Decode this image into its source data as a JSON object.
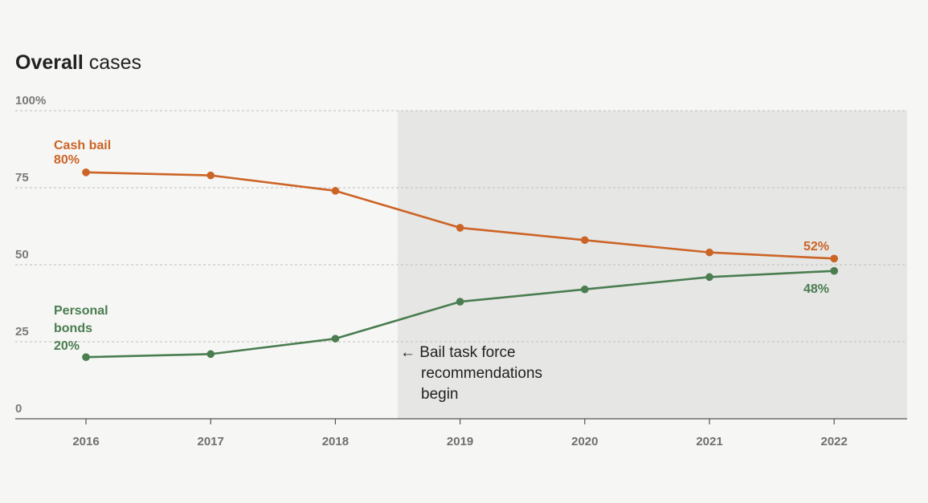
{
  "chart_data": {
    "type": "line",
    "title_bold": "Overall",
    "title_rest": " cases",
    "x": [
      "2016",
      "2017",
      "2018",
      "2019",
      "2020",
      "2021",
      "2022"
    ],
    "ylim": [
      0,
      100
    ],
    "y_ticks": [
      "0",
      "25",
      "50",
      "75",
      "100%"
    ],
    "y_tick_values": [
      0,
      25,
      50,
      75,
      100
    ],
    "grid": true,
    "highlight_range": [
      "2018.5",
      "2022.6"
    ],
    "series": [
      {
        "name": "Cash bail",
        "color": "#cc6426",
        "values": [
          80,
          79,
          74,
          62,
          58,
          54,
          52
        ],
        "start_label": "80%",
        "end_label": "52%"
      },
      {
        "name": "Personal bonds",
        "name_lines": [
          "Personal",
          "bonds"
        ],
        "color": "#4a7d50",
        "values": [
          20,
          21,
          26,
          38,
          42,
          46,
          48
        ],
        "start_label": "20%",
        "end_label": "48%"
      }
    ],
    "annotation": {
      "lines": [
        "← Bail task force",
        "recommendations",
        "begin"
      ]
    }
  }
}
